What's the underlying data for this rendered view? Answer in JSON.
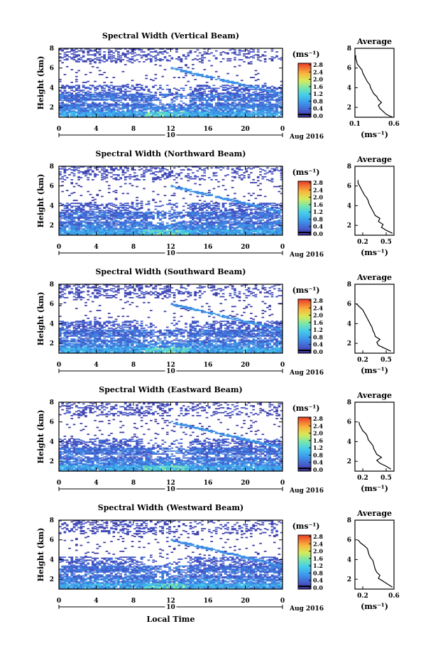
{
  "chart_data": [
    {
      "type": "heatmap",
      "title": "Spectral Width (Vertical Beam)",
      "ylabel": "Height (km)",
      "yticks": [
        "2",
        "4",
        "6",
        "8"
      ],
      "xticks": [
        "0",
        "4",
        "8",
        "12",
        "16",
        "20",
        "0"
      ],
      "date_marker": "10",
      "date_label": "Aug 2016",
      "xlim": [
        0,
        24
      ],
      "ylim": [
        1,
        8
      ],
      "colorbar": {
        "unit": "(ms⁻¹)",
        "ticks": [
          "0.0",
          "0.4",
          "0.8",
          "1.2",
          "1.6",
          "2.0",
          "2.4",
          "2.8"
        ]
      },
      "profile": {
        "title": "Average",
        "unit": "(ms⁻¹)",
        "xticks": [
          "0.1",
          "0.6"
        ],
        "xlim": [
          0.1,
          0.6
        ],
        "yticks": [
          "2",
          "4",
          "6",
          "8"
        ],
        "ylim": [
          1,
          8
        ],
        "heights": [
          1.0,
          1.3,
          1.6,
          1.9,
          2.2,
          2.5,
          2.8,
          3.1,
          3.4,
          3.7,
          4.0,
          4.3,
          4.6,
          4.9,
          5.2,
          5.5,
          5.8,
          6.1,
          6.4,
          6.7,
          7.0,
          7.3
        ],
        "values": [
          0.58,
          0.5,
          0.46,
          0.42,
          0.4,
          0.44,
          0.4,
          0.38,
          0.34,
          0.32,
          0.3,
          0.29,
          0.26,
          0.24,
          0.22,
          0.2,
          0.19,
          0.16,
          0.13,
          0.12,
          0.11,
          0.11
        ]
      }
    },
    {
      "type": "heatmap",
      "title": "Spectral Width (Northward Beam)",
      "ylabel": "Height (km)",
      "yticks": [
        "2",
        "4",
        "6",
        "8"
      ],
      "xticks": [
        "0",
        "4",
        "8",
        "12",
        "16",
        "20",
        "0"
      ],
      "date_marker": "10",
      "date_label": "Aug 2016",
      "xlim": [
        0,
        24
      ],
      "ylim": [
        1,
        8
      ],
      "colorbar": {
        "unit": "(ms⁻¹)",
        "ticks": [
          "0.0",
          "0.4",
          "0.8",
          "1.2",
          "1.6",
          "2.0",
          "2.4",
          "2.8"
        ]
      },
      "profile": {
        "title": "Average",
        "unit": "(ms⁻¹)",
        "xticks": [
          "0.2",
          "0.5"
        ],
        "xlim": [
          0.1,
          0.6
        ],
        "yticks": [
          "2",
          "4",
          "6",
          "8"
        ],
        "ylim": [
          1,
          8
        ],
        "heights": [
          1.2,
          1.5,
          1.8,
          2.1,
          2.4,
          2.7,
          3.0,
          3.3,
          3.6,
          3.9,
          4.2,
          4.5,
          4.8,
          5.1,
          5.4,
          5.7,
          6.0,
          6.3,
          6.6
        ],
        "values": [
          0.58,
          0.5,
          0.44,
          0.46,
          0.4,
          0.42,
          0.36,
          0.34,
          0.32,
          0.3,
          0.28,
          0.27,
          0.25,
          0.22,
          0.2,
          0.18,
          0.16,
          0.14,
          0.14
        ]
      }
    },
    {
      "type": "heatmap",
      "title": "Spectral Width (Southward Beam)",
      "ylabel": "Height (km)",
      "yticks": [
        "2",
        "4",
        "6",
        "8"
      ],
      "xticks": [
        "0",
        "4",
        "8",
        "12",
        "16",
        "20",
        "0"
      ],
      "date_marker": "10",
      "date_label": "Aug 2016",
      "xlim": [
        0,
        24
      ],
      "ylim": [
        1,
        8
      ],
      "colorbar": {
        "unit": "(ms⁻¹)",
        "ticks": [
          "0.0",
          "0.4",
          "0.8",
          "1.2",
          "1.6",
          "2.0",
          "2.4",
          "2.8"
        ]
      },
      "profile": {
        "title": "Average",
        "unit": "(ms⁻¹)",
        "xticks": [
          "0.2",
          "0.5"
        ],
        "xlim": [
          0.1,
          0.6
        ],
        "yticks": [
          "2",
          "4",
          "6",
          "8"
        ],
        "ylim": [
          1,
          8
        ],
        "heights": [
          1.2,
          1.5,
          1.8,
          2.1,
          2.4,
          2.7,
          3.0,
          3.3,
          3.6,
          3.9,
          4.2,
          4.5,
          4.8,
          5.1,
          5.4,
          5.7,
          6.0
        ],
        "values": [
          0.56,
          0.48,
          0.4,
          0.38,
          0.42,
          0.36,
          0.35,
          0.33,
          0.32,
          0.3,
          0.28,
          0.26,
          0.24,
          0.22,
          0.2,
          0.16,
          0.12
        ]
      }
    },
    {
      "type": "heatmap",
      "title": "Spectral Width (Eastward Beam)",
      "ylabel": "Height (km)",
      "yticks": [
        "2",
        "4",
        "6",
        "8"
      ],
      "xticks": [
        "0",
        "4",
        "8",
        "12",
        "16",
        "20",
        "0"
      ],
      "date_marker": "10",
      "date_label": "Aug 2016",
      "xlim": [
        0,
        24
      ],
      "ylim": [
        1,
        8
      ],
      "colorbar": {
        "unit": "(ms⁻¹)",
        "ticks": [
          "0.0",
          "0.4",
          "0.8",
          "1.2",
          "1.6",
          "2.0",
          "2.4",
          "2.8"
        ]
      },
      "profile": {
        "title": "Average",
        "unit": "(ms⁻¹)",
        "xticks": [
          "0.2",
          "0.5"
        ],
        "xlim": [
          0.1,
          0.6
        ],
        "yticks": [
          "2",
          "4",
          "6",
          "8"
        ],
        "ylim": [
          1,
          8
        ],
        "heights": [
          1.2,
          1.5,
          1.8,
          2.1,
          2.4,
          2.7,
          3.0,
          3.3,
          3.6,
          3.9,
          4.2,
          4.5,
          4.8,
          5.1,
          5.4,
          5.7,
          6.0
        ],
        "values": [
          0.56,
          0.5,
          0.42,
          0.38,
          0.44,
          0.38,
          0.36,
          0.34,
          0.33,
          0.3,
          0.27,
          0.26,
          0.24,
          0.2,
          0.18,
          0.16,
          0.15
        ]
      }
    },
    {
      "type": "heatmap",
      "title": "Spectral Width (Westward Beam)",
      "ylabel": "Height (km)",
      "yticks": [
        "2",
        "4",
        "6",
        "8"
      ],
      "xticks": [
        "0",
        "4",
        "8",
        "12",
        "16",
        "20",
        "0"
      ],
      "date_marker": "10",
      "date_label": "Aug 2016",
      "xlabel": "Local Time",
      "xlim": [
        0,
        24
      ],
      "ylim": [
        1,
        8
      ],
      "colorbar": {
        "unit": "(ms⁻¹)",
        "ticks": [
          "0.0",
          "0.4",
          "0.8",
          "1.2",
          "1.6",
          "2.0",
          "2.4",
          "2.8"
        ]
      },
      "profile": {
        "title": "Average",
        "unit": "(ms⁻¹)",
        "xticks": [
          "0.2",
          "0.6"
        ],
        "xlim": [
          0.1,
          0.6
        ],
        "yticks": [
          "2",
          "4",
          "6",
          "8"
        ],
        "ylim": [
          1,
          8
        ],
        "heights": [
          1.2,
          1.5,
          1.8,
          2.1,
          2.4,
          2.7,
          3.0,
          3.3,
          3.6,
          3.9,
          4.2,
          4.5,
          4.8,
          5.1,
          5.4,
          5.7,
          6.0
        ],
        "values": [
          0.58,
          0.52,
          0.46,
          0.4,
          0.42,
          0.38,
          0.36,
          0.35,
          0.34,
          0.33,
          0.3,
          0.28,
          0.27,
          0.26,
          0.22,
          0.17,
          0.14
        ]
      }
    }
  ]
}
